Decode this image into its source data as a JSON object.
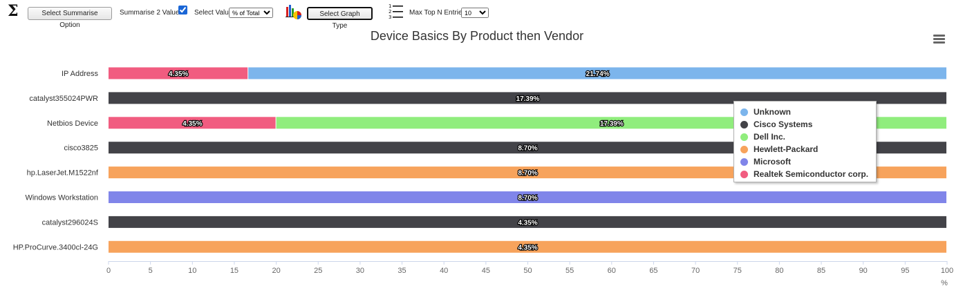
{
  "toolbar": {
    "summarise_button": "Select Summarise Option",
    "summarise2_label": "Summarise 2 Values",
    "summarise2_checked": true,
    "select_value_label": "Select Value",
    "select_value_selected": "% of Total",
    "graph_type_button": "Select Graph Type",
    "max_top_n_label": "Max Top N Entries",
    "max_top_n_selected": "10"
  },
  "icons": {
    "sigma": "sigma-icon",
    "graph": "graph-type-icon",
    "list": "numbered-list-icon",
    "menu": "hamburger-menu-icon"
  },
  "chart_data": {
    "type": "bar",
    "orientation": "horizontal",
    "stacked": true,
    "title": "Device Basics By Product then Vendor",
    "xlabel": "",
    "axis_unit": "%",
    "xlim": [
      0,
      100
    ],
    "ticks": [
      0,
      5,
      10,
      15,
      20,
      25,
      30,
      35,
      40,
      45,
      50,
      55,
      60,
      65,
      70,
      75,
      80,
      85,
      90,
      95,
      100
    ],
    "grid": false,
    "legend_position": "right",
    "categories": [
      "IP Address",
      "catalyst355024PWR",
      "Netbios Device",
      "cisco3825",
      "hp.LaserJet.M1522nf",
      "Windows Workstation",
      "catalyst296024S",
      "HP.ProCurve.3400cl-24G"
    ],
    "series": [
      {
        "name": "Realtek Semiconductor corp.",
        "color": "#f15c80",
        "values": [
          16.67,
          0,
          20,
          0,
          0,
          0,
          0,
          0
        ],
        "labels": [
          "4.35%",
          "",
          "4.35%",
          "",
          "",
          "",
          "",
          ""
        ]
      },
      {
        "name": "Unknown",
        "color": "#7cb5ec",
        "values": [
          83.33,
          0,
          0,
          0,
          0,
          0,
          0,
          0
        ],
        "labels": [
          "21.74%",
          "",
          "",
          "",
          "",
          "",
          "",
          ""
        ]
      },
      {
        "name": "Cisco Systems",
        "color": "#434348",
        "values": [
          0,
          100,
          0,
          100,
          0,
          0,
          100,
          0
        ],
        "labels": [
          "",
          "17.39%",
          "",
          "8.70%",
          "",
          "",
          "4.35%",
          ""
        ]
      },
      {
        "name": "Dell Inc.",
        "color": "#90ed7d",
        "values": [
          0,
          0,
          80,
          0,
          0,
          0,
          0,
          0
        ],
        "labels": [
          "",
          "",
          "17.39%",
          "",
          "",
          "",
          "",
          ""
        ]
      },
      {
        "name": "Hewlett-Packard",
        "color": "#f7a35c",
        "values": [
          0,
          0,
          0,
          0,
          100,
          0,
          0,
          100
        ],
        "labels": [
          "",
          "",
          "",
          "",
          "8.70%",
          "",
          "",
          "4.35%"
        ]
      },
      {
        "name": "Microsoft",
        "color": "#8085e9",
        "values": [
          0,
          0,
          0,
          0,
          0,
          100,
          0,
          0
        ],
        "labels": [
          "",
          "",
          "",
          "",
          "",
          "8.70%",
          "",
          ""
        ]
      }
    ],
    "legend_order": [
      "Unknown",
      "Cisco Systems",
      "Dell Inc.",
      "Hewlett-Packard",
      "Microsoft",
      "Realtek Semiconductor corp."
    ]
  }
}
